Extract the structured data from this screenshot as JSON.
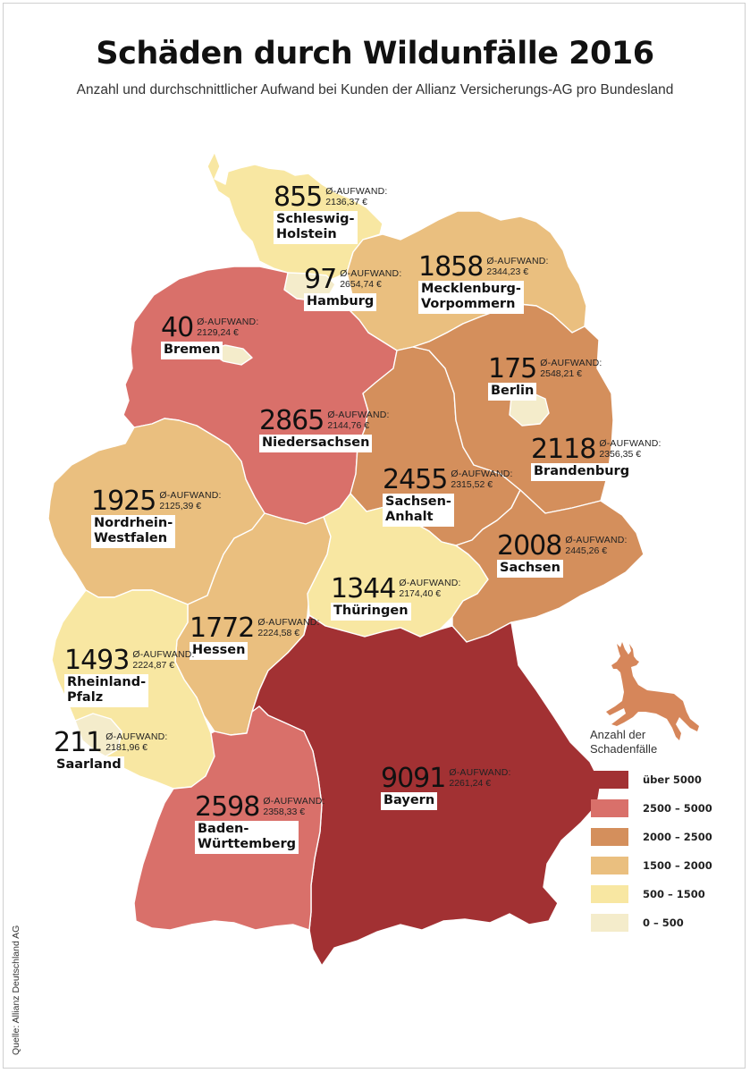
{
  "title": "Schäden durch Wildunfälle 2016",
  "subtitle": "Anzahl und durchschnittlicher Aufwand bei Kunden der Allianz Versicherungs-AG pro Bundesland",
  "aufwand_label": "Ø-AUFWAND:",
  "states": [
    {
      "id": "sh",
      "name": "Schleswig-\nHolstein",
      "count": "855",
      "aufwand": "2136,37 €",
      "class": "500 – 1500"
    },
    {
      "id": "hh",
      "name": "Hamburg",
      "count": "97",
      "aufwand": "2654,74 €",
      "class": "0 – 500"
    },
    {
      "id": "mv",
      "name": "Mecklenburg-\nVorpommern",
      "count": "1858",
      "aufwand": "2344,23 €",
      "class": "1500 – 2000"
    },
    {
      "id": "hb",
      "name": "Bremen",
      "count": "40",
      "aufwand": "2129,24 €",
      "class": "0 – 500"
    },
    {
      "id": "be",
      "name": "Berlin",
      "count": "175",
      "aufwand": "2548,21 €",
      "class": "0 – 500"
    },
    {
      "id": "ni",
      "name": "Niedersachsen",
      "count": "2865",
      "aufwand": "2144,76 €",
      "class": "2500 – 5000"
    },
    {
      "id": "bb",
      "name": "Brandenburg",
      "count": "2118",
      "aufwand": "2356,35 €",
      "class": "2000 – 2500"
    },
    {
      "id": "st",
      "name": "Sachsen-\nAnhalt",
      "count": "2455",
      "aufwand": "2315,52 €",
      "class": "2000 – 2500"
    },
    {
      "id": "nw",
      "name": "Nordrhein-\nWestfalen",
      "count": "1925",
      "aufwand": "2125,39 €",
      "class": "1500 – 2000"
    },
    {
      "id": "sn",
      "name": "Sachsen",
      "count": "2008",
      "aufwand": "2445,26 €",
      "class": "2000 – 2500"
    },
    {
      "id": "th",
      "name": "Thüringen",
      "count": "1344",
      "aufwand": "2174,40 €",
      "class": "500 – 1500"
    },
    {
      "id": "he",
      "name": "Hessen",
      "count": "1772",
      "aufwand": "2224,58 €",
      "class": "1500 – 2000"
    },
    {
      "id": "rp",
      "name": "Rheinland-\nPfalz",
      "count": "1493",
      "aufwand": "2224,87 €",
      "class": "500 – 1500"
    },
    {
      "id": "sl",
      "name": "Saarland",
      "count": "211",
      "aufwand": "2181,96 €",
      "class": "0 – 500"
    },
    {
      "id": "by",
      "name": "Bayern",
      "count": "9091",
      "aufwand": "2261,24 €",
      "class": "über 5000"
    },
    {
      "id": "bw",
      "name": "Baden-\nWürttemberg",
      "count": "2598",
      "aufwand": "2358,33 €",
      "class": "2500 – 5000"
    }
  ],
  "legend": {
    "title": "Anzahl der\nSchadenfälle",
    "items": [
      {
        "label": "über 5000",
        "color": "#a23133"
      },
      {
        "label": "2500 – 5000",
        "color": "#d9706a"
      },
      {
        "label": "2000 – 2500",
        "color": "#d48f5c"
      },
      {
        "label": "1500 – 2000",
        "color": "#eabf7f"
      },
      {
        "label": "500 – 1500",
        "color": "#f8e7a2"
      },
      {
        "label": "0 – 500",
        "color": "#f4eccb"
      }
    ]
  },
  "deer_icon": "deer-icon",
  "deer_color": "#d6865a",
  "source": "Quelle: Allianz Deutschland AG"
}
